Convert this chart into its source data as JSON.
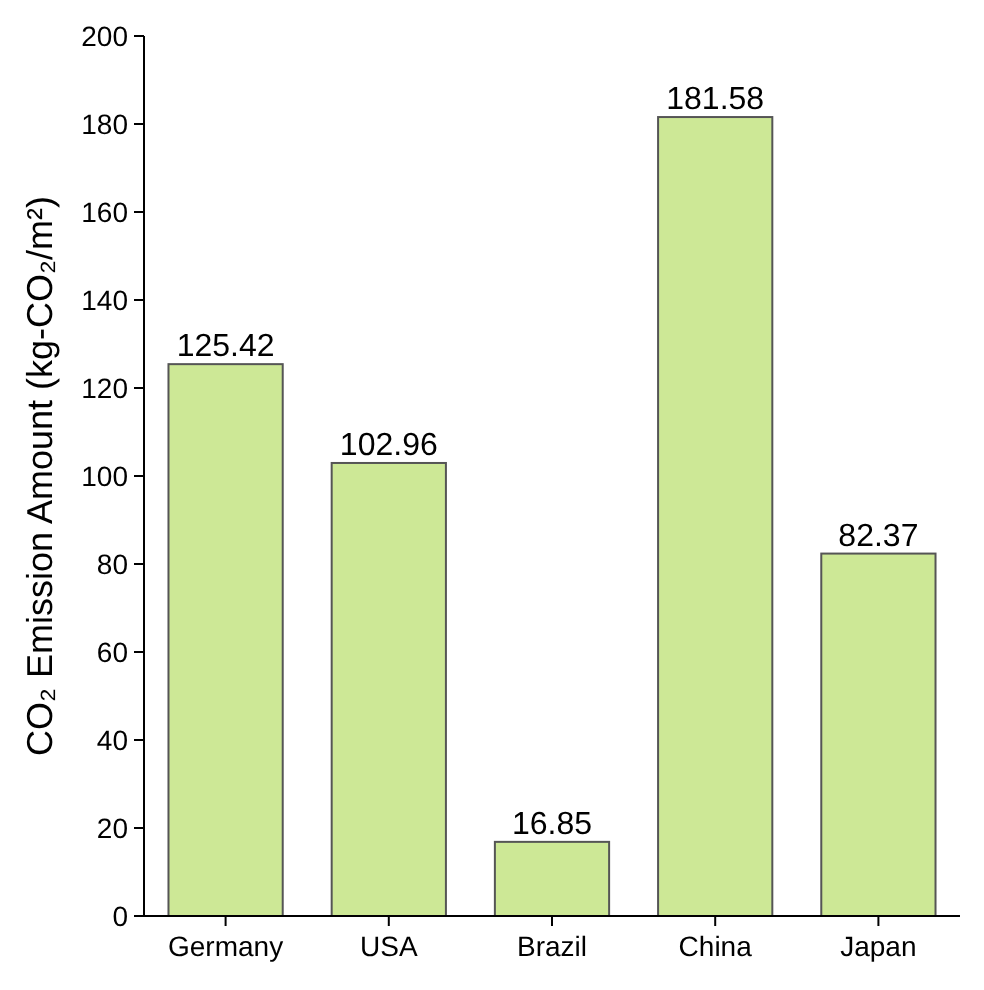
{
  "chart_data": {
    "type": "bar",
    "ylabel": "CO₂ Emission Amount (kg-CO₂/m²)",
    "categories": [
      "Germany",
      "USA",
      "Brazil",
      "China",
      "Japan"
    ],
    "values": [
      125.42,
      102.96,
      16.85,
      181.58,
      82.37
    ],
    "color": "#cde896",
    "ylim": [
      0,
      200
    ],
    "yticks": [
      0,
      20,
      40,
      60,
      80,
      100,
      120,
      140,
      160,
      180,
      200
    ],
    "data_labels": true
  }
}
